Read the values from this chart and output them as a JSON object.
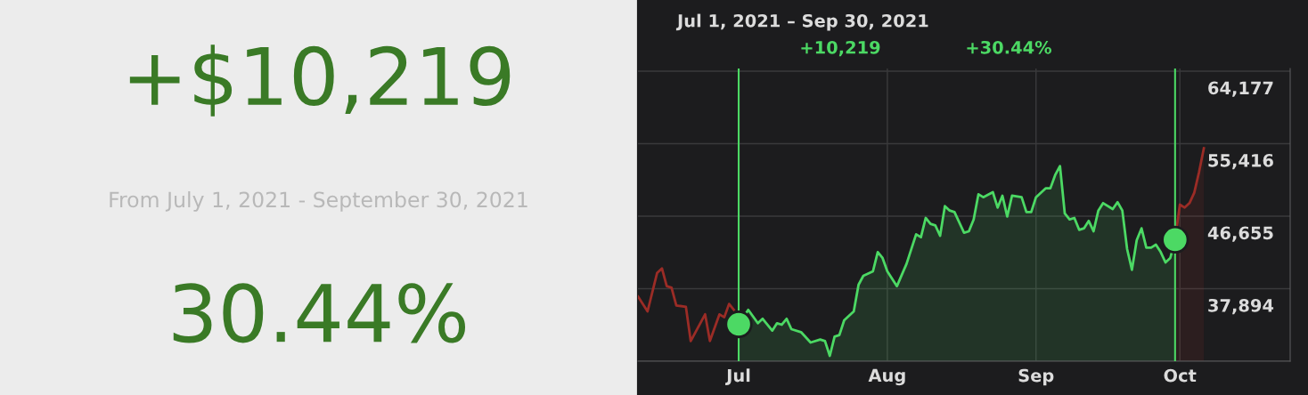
{
  "chart_data": [
    {
      "type": "other",
      "title": "+$10,219",
      "subtitle": "From July 1, 2021 - September 30, 2021",
      "annotations": [
        "30.44%"
      ]
    },
    {
      "type": "area",
      "title": "Jul 1, 2021 – Sep 30, 2021",
      "annotations": [
        "+10,219",
        "+30.44%"
      ],
      "xlim": [
        "2021-06-10",
        "2021-10-24"
      ],
      "xticks": [
        {
          "value": "2021-07-01",
          "label": "Jul"
        },
        {
          "value": "2021-08-01",
          "label": "Aug"
        },
        {
          "value": "2021-09-01",
          "label": "Sep"
        },
        {
          "value": "2021-10-01",
          "label": "Oct"
        }
      ],
      "ylim": [
        29133,
        64500
      ],
      "yticks": [
        {
          "value": 29133,
          "label": null
        },
        {
          "value": 37894,
          "label": "37,894"
        },
        {
          "value": 46655,
          "label": "46,655"
        },
        {
          "value": 55416,
          "label": "55,416"
        },
        {
          "value": 64177,
          "label": "64,177"
        }
      ],
      "grid": true,
      "legend": false,
      "ref_lines": [
        {
          "axis": "x",
          "value": "2021-07-01",
          "color": "#4cd964"
        },
        {
          "axis": "x",
          "value": "2021-09-30",
          "color": "#4cd964"
        }
      ],
      "series": [
        {
          "type": "line",
          "color": "#9b2c26",
          "x": [
            "2021-06-10",
            "2021-06-12",
            "2021-06-14",
            "2021-06-15",
            "2021-06-16",
            "2021-06-17",
            "2021-06-18",
            "2021-06-20",
            "2021-06-21",
            "2021-06-24",
            "2021-06-25",
            "2021-06-27",
            "2021-06-28",
            "2021-06-29",
            "2021-06-30"
          ],
          "values": [
            36947,
            35155,
            39813,
            40351,
            38201,
            38022,
            35872,
            35693,
            31572,
            34797,
            31572,
            34797,
            34439,
            36051,
            35335
          ]
        },
        {
          "type": "area",
          "color": "#4cd964",
          "x": [
            "2021-07-01",
            "2021-07-03",
            "2021-07-05",
            "2021-07-06",
            "2021-07-08",
            "2021-07-09",
            "2021-07-10",
            "2021-07-11",
            "2021-07-12",
            "2021-07-14",
            "2021-07-16",
            "2021-07-18",
            "2021-07-19",
            "2021-07-20",
            "2021-07-21",
            "2021-07-22",
            "2021-07-23",
            "2021-07-25",
            "2021-07-26",
            "2021-07-27",
            "2021-07-29",
            "2021-07-30",
            "2021-07-31",
            "2021-08-01",
            "2021-08-03",
            "2021-08-05",
            "2021-08-07",
            "2021-08-08",
            "2021-08-09",
            "2021-08-10",
            "2021-08-11",
            "2021-08-12",
            "2021-08-13",
            "2021-08-14",
            "2021-08-15",
            "2021-08-17",
            "2021-08-18",
            "2021-08-19",
            "2021-08-20",
            "2021-08-21",
            "2021-08-23",
            "2021-08-24",
            "2021-08-25",
            "2021-08-26",
            "2021-08-27",
            "2021-08-29",
            "2021-08-30",
            "2021-08-31",
            "2021-09-01",
            "2021-09-03",
            "2021-09-04",
            "2021-09-05",
            "2021-09-06",
            "2021-09-07",
            "2021-09-08",
            "2021-09-09",
            "2021-09-10",
            "2021-09-11",
            "2021-09-12",
            "2021-09-13",
            "2021-09-14",
            "2021-09-15",
            "2021-09-17",
            "2021-09-18",
            "2021-09-19",
            "2021-09-20",
            "2021-09-21",
            "2021-09-22",
            "2021-09-23",
            "2021-09-24",
            "2021-09-25",
            "2021-09-26",
            "2021-09-27",
            "2021-09-28",
            "2021-09-29",
            "2021-09-30"
          ],
          "values": [
            33591,
            35335,
            33722,
            34260,
            32827,
            33722,
            33543,
            34260,
            33006,
            32647,
            31393,
            31752,
            31572,
            29781,
            32110,
            32289,
            34081,
            35155,
            38380,
            39455,
            39993,
            42321,
            41605,
            39993,
            38201,
            40888,
            44471,
            44113,
            46442,
            45725,
            45546,
            44292,
            47875,
            47338,
            47159,
            44650,
            44830,
            46263,
            49308,
            48950,
            49559,
            47696,
            49129,
            46621,
            49129,
            48950,
            47159,
            47159,
            48950,
            50025,
            50025,
            51637,
            52712,
            46979,
            46263,
            46442,
            45009,
            45188,
            46084,
            44830,
            47338,
            48233,
            47517,
            48341,
            47338,
            42680,
            40172,
            43752,
            45188,
            42859,
            42859,
            43217,
            42321,
            41067,
            41605,
            43810
          ]
        },
        {
          "type": "area",
          "color": "#9b2c26",
          "x": [
            "2021-09-30",
            "2021-10-01",
            "2021-10-02",
            "2021-10-03",
            "2021-10-04",
            "2021-10-05",
            "2021-10-06"
          ],
          "values": [
            43810,
            48054,
            47696,
            48233,
            49487,
            51996,
            54862
          ]
        },
        {
          "type": "scatter",
          "color": "#4cd964",
          "marker": "circle",
          "x": [
            "2021-07-01",
            "2021-09-30"
          ],
          "values": [
            33591,
            43810
          ]
        }
      ]
    }
  ]
}
